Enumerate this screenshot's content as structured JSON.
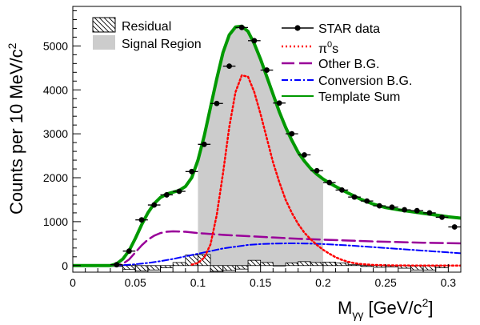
{
  "chart_data": {
    "type": "line",
    "xlabel": "M",
    "xlabel_sub": "γγ",
    "xlabel_unit": "[GeV/c",
    "xlabel_unit_sup": "2",
    "xlabel_unit_close": "]",
    "ylabel": "Counts per 10 MeV/c",
    "ylabel_sup": "2",
    "xlim": [
      0,
      0.31
    ],
    "ylim": [
      -150,
      5900
    ],
    "x_ticks": [
      0,
      0.05,
      0.1,
      0.15,
      0.2,
      0.25,
      0.3
    ],
    "x_tick_labels": [
      "0",
      "0.05",
      "0.1",
      "0.15",
      "0.2",
      "0.25",
      "0.3"
    ],
    "y_ticks": [
      0,
      1000,
      2000,
      3000,
      4000,
      5000
    ],
    "y_tick_labels": [
      "0",
      "1000",
      "2000",
      "3000",
      "4000",
      "5000"
    ],
    "signal_region": [
      0.1,
      0.2
    ],
    "legend_left": {
      "residual_label": "Residual",
      "signal_label": "Signal Region"
    },
    "legend_right": {
      "star_label": "STAR data",
      "pi0_label": "π",
      "pi0_sup": "0",
      "pi0_suffix": "s",
      "other_label": "Other B.G.",
      "conversion_label": "Conversion B.G.",
      "template_label": "Template Sum"
    },
    "colors": {
      "star": "#000000",
      "pi0": "#ff0000",
      "other": "#990099",
      "conversion": "#0000ff",
      "template": "#009900",
      "signal": "#cccccc"
    },
    "star_data": {
      "x": [
        0.035,
        0.045,
        0.055,
        0.065,
        0.075,
        0.085,
        0.095,
        0.105,
        0.115,
        0.125,
        0.135,
        0.145,
        0.155,
        0.165,
        0.175,
        0.185,
        0.195,
        0.205,
        0.215,
        0.225,
        0.235,
        0.245,
        0.255,
        0.265,
        0.275,
        0.285,
        0.295,
        0.305
      ],
      "y": [
        20,
        330,
        1040,
        1380,
        1610,
        1690,
        2140,
        2760,
        3690,
        4540,
        5420,
        5120,
        4450,
        3700,
        3000,
        2520,
        2160,
        1890,
        1720,
        1560,
        1470,
        1360,
        1330,
        1270,
        1250,
        1200,
        1100,
        880
      ]
    },
    "template_sum": {
      "x": [
        0.0,
        0.03,
        0.035,
        0.04,
        0.045,
        0.05,
        0.055,
        0.06,
        0.065,
        0.07,
        0.075,
        0.08,
        0.085,
        0.09,
        0.095,
        0.1,
        0.105,
        0.11,
        0.115,
        0.12,
        0.125,
        0.13,
        0.135,
        0.14,
        0.145,
        0.15,
        0.155,
        0.16,
        0.165,
        0.17,
        0.175,
        0.18,
        0.185,
        0.19,
        0.195,
        0.2,
        0.205,
        0.21,
        0.22,
        0.23,
        0.24,
        0.25,
        0.26,
        0.27,
        0.28,
        0.29,
        0.3,
        0.31
      ],
      "y": [
        0,
        0,
        40,
        150,
        340,
        620,
        930,
        1200,
        1410,
        1550,
        1630,
        1670,
        1710,
        1800,
        2000,
        2400,
        2950,
        3600,
        4250,
        4850,
        5250,
        5430,
        5450,
        5330,
        5050,
        4700,
        4300,
        3900,
        3500,
        3150,
        2850,
        2580,
        2380,
        2210,
        2080,
        1970,
        1880,
        1800,
        1650,
        1510,
        1400,
        1320,
        1270,
        1230,
        1190,
        1150,
        1110,
        1080
      ]
    },
    "pi0s": {
      "x": [
        0.095,
        0.1,
        0.105,
        0.11,
        0.115,
        0.12,
        0.125,
        0.13,
        0.135,
        0.14,
        0.145,
        0.15,
        0.155,
        0.16,
        0.165,
        0.17,
        0.175,
        0.18,
        0.185,
        0.19,
        0.195,
        0.2,
        0.205,
        0.21,
        0.215,
        0.22,
        0.225,
        0.23,
        0.24,
        0.25,
        0.26,
        0.27,
        0.28,
        0.29,
        0.3,
        0.31
      ],
      "y": [
        20,
        60,
        180,
        480,
        1150,
        2100,
        3150,
        3950,
        4330,
        4300,
        3950,
        3450,
        2900,
        2350,
        1900,
        1500,
        1200,
        950,
        750,
        600,
        470,
        360,
        270,
        190,
        130,
        85,
        55,
        35,
        15,
        6,
        3,
        1,
        0,
        0,
        0,
        0
      ]
    },
    "other_bg": {
      "x": [
        0.0,
        0.035,
        0.04,
        0.045,
        0.05,
        0.055,
        0.06,
        0.065,
        0.07,
        0.075,
        0.08,
        0.09,
        0.1,
        0.12,
        0.14,
        0.16,
        0.18,
        0.2,
        0.22,
        0.24,
        0.26,
        0.28,
        0.3,
        0.31
      ],
      "y": [
        0,
        0,
        40,
        140,
        300,
        460,
        590,
        680,
        740,
        770,
        780,
        770,
        740,
        700,
        670,
        640,
        610,
        590,
        570,
        550,
        535,
        520,
        510,
        505
      ]
    },
    "conversion_bg": {
      "x": [
        0.0,
        0.03,
        0.04,
        0.05,
        0.06,
        0.07,
        0.08,
        0.09,
        0.1,
        0.11,
        0.12,
        0.13,
        0.14,
        0.15,
        0.16,
        0.17,
        0.18,
        0.19,
        0.2,
        0.22,
        0.24,
        0.26,
        0.28,
        0.3,
        0.31
      ],
      "y": [
        0,
        0,
        10,
        30,
        60,
        100,
        150,
        210,
        270,
        330,
        390,
        430,
        470,
        490,
        500,
        505,
        505,
        500,
        490,
        460,
        420,
        380,
        340,
        300,
        280
      ]
    },
    "residual": {
      "bin_edges": [
        0.03,
        0.04,
        0.05,
        0.06,
        0.07,
        0.08,
        0.09,
        0.1,
        0.11,
        0.12,
        0.13,
        0.14,
        0.15,
        0.16,
        0.17,
        0.18,
        0.19,
        0.2,
        0.21,
        0.22,
        0.23,
        0.24,
        0.25,
        0.26,
        0.27,
        0.28,
        0.29,
        0.3
      ],
      "values": [
        -20,
        -90,
        -120,
        -100,
        -50,
        70,
        240,
        250,
        -130,
        -110,
        -80,
        120,
        70,
        0,
        60,
        90,
        70,
        80,
        60,
        20,
        -20,
        -40,
        -30,
        -60,
        -100,
        -100,
        -50
      ]
    }
  }
}
